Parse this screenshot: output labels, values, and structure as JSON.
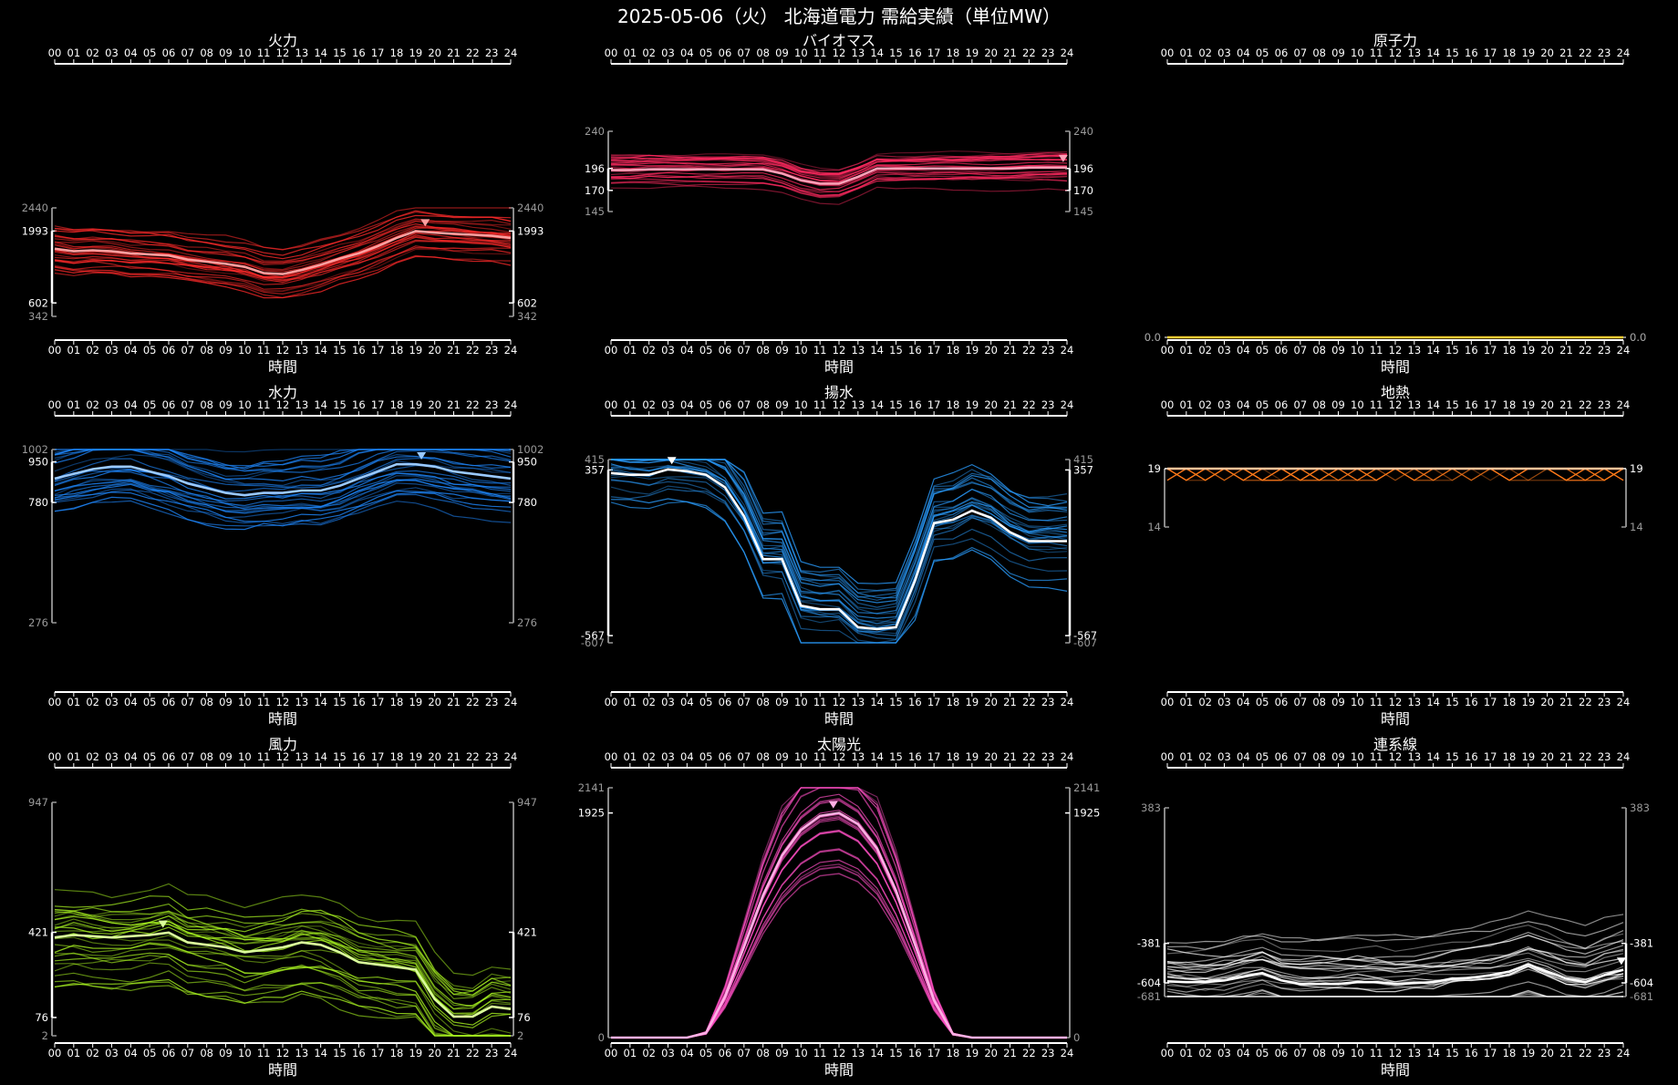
{
  "title": "2025-05-06（火） 北海道電力 需給実績（単位MW）",
  "x_ticks": [
    "00",
    "01",
    "02",
    "03",
    "04",
    "05",
    "06",
    "07",
    "08",
    "09",
    "10",
    "11",
    "12",
    "13",
    "14",
    "15",
    "16",
    "17",
    "18",
    "19",
    "20",
    "21",
    "22",
    "23",
    "24"
  ],
  "xlabel": "時間",
  "chart_data": [
    {
      "type": "line",
      "title": "火力",
      "color": "#ff2a2a",
      "y_ticks": {
        "max": 2440,
        "upper": 1993,
        "lower": 602,
        "min": 342
      },
      "today": [
        1650,
        1600,
        1620,
        1600,
        1560,
        1540,
        1520,
        1440,
        1400,
        1360,
        1300,
        1180,
        1160,
        1240,
        1340,
        1460,
        1560,
        1700,
        1860,
        1990,
        1960,
        1940,
        1920,
        1900,
        1860
      ],
      "peak_marker_x": 19.5
    },
    {
      "type": "line",
      "title": "バイオマス",
      "color": "#ff2a60",
      "y_ticks": {
        "max": 240,
        "upper": 196,
        "lower": 170,
        "min": 145
      },
      "today": [
        194,
        194,
        195,
        195,
        195,
        195,
        195,
        195,
        195,
        190,
        182,
        178,
        178,
        186,
        196,
        196,
        196,
        196,
        196,
        196,
        196,
        196,
        197,
        197,
        197
      ],
      "peak_marker_x": 23.8
    },
    {
      "type": "line",
      "title": "原子力",
      "color": "#ffcc33",
      "y_ticks": {
        "max": 0.0,
        "min": 0.0
      },
      "today": [
        0,
        0,
        0,
        0,
        0,
        0,
        0,
        0,
        0,
        0,
        0,
        0,
        0,
        0,
        0,
        0,
        0,
        0,
        0,
        0,
        0,
        0,
        0,
        0,
        0
      ]
    },
    {
      "type": "line",
      "title": "水力",
      "color": "#1e88ff",
      "y_ticks": {
        "max": 1002,
        "upper": 950,
        "lower": 780,
        "min": 276
      },
      "today": [
        880,
        900,
        920,
        930,
        930,
        910,
        890,
        860,
        840,
        820,
        810,
        820,
        820,
        830,
        830,
        850,
        880,
        910,
        940,
        940,
        930,
        910,
        900,
        890,
        880
      ],
      "peak_marker_x": 19.3
    },
    {
      "type": "line",
      "title": "揚水",
      "color": "#2a9dff",
      "y_ticks": {
        "max": 415,
        "upper": 357,
        "lower": -567,
        "min": -607
      },
      "today": [
        340,
        330,
        330,
        360,
        350,
        330,
        260,
        100,
        -140,
        -140,
        -400,
        -420,
        -420,
        -520,
        -530,
        -520,
        -260,
        60,
        80,
        130,
        90,
        10,
        -40,
        -40,
        -40
      ],
      "peak_marker_x": 3.2
    },
    {
      "type": "line",
      "title": "地熱",
      "color": "#ff7a1a",
      "y_ticks": {
        "upper": 19,
        "min": 14
      },
      "today": [
        19,
        19,
        19,
        19,
        19,
        19,
        19,
        19,
        19,
        19,
        19,
        19,
        19,
        19,
        19,
        19,
        19,
        19,
        19,
        19,
        19,
        19,
        19,
        19,
        19
      ]
    },
    {
      "type": "line",
      "title": "風力",
      "color": "#b0ff22",
      "y_ticks": {
        "max": 947,
        "upper": 421,
        "lower": 76,
        "min": 2
      },
      "today": [
        400,
        410,
        405,
        400,
        405,
        410,
        420,
        380,
        370,
        360,
        340,
        350,
        360,
        380,
        370,
        340,
        300,
        290,
        280,
        270,
        150,
        80,
        80,
        120,
        110
      ],
      "peak_marker_x": 5.7
    },
    {
      "type": "line",
      "title": "太陽光",
      "color": "#ff4fc4",
      "y_ticks": {
        "max": 2141,
        "upper": 1925,
        "min": 0
      },
      "today": [
        0,
        0,
        0,
        0,
        0,
        40,
        350,
        780,
        1220,
        1560,
        1780,
        1900,
        1925,
        1830,
        1620,
        1260,
        800,
        320,
        30,
        0,
        0,
        0,
        0,
        0,
        0
      ],
      "peak_marker_x": 11.7
    },
    {
      "type": "line",
      "title": "連系線",
      "color": "#ffffff",
      "y_ticks": {
        "max": 383,
        "upper": -381,
        "lower": -604,
        "min": -681
      },
      "today": [
        -595,
        -600,
        -600,
        -590,
        -570,
        -550,
        -590,
        -610,
        -610,
        -610,
        -600,
        -600,
        -610,
        -605,
        -600,
        -580,
        -575,
        -560,
        -540,
        -500,
        -540,
        -580,
        -600,
        -560,
        -530
      ],
      "peak_marker_x": 23.9
    }
  ]
}
